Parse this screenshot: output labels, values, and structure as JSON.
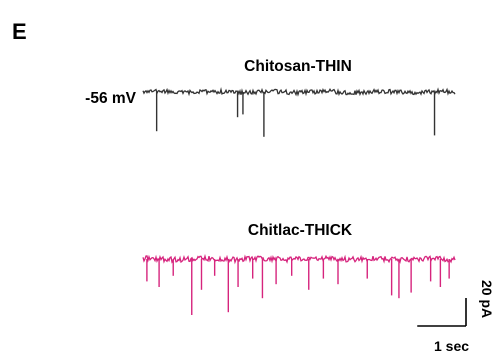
{
  "panel_label": "E",
  "traces": [
    {
      "title": "Chitosan-THIN",
      "holding_potential": "-56 mV",
      "color": "#333333"
    },
    {
      "title": "Chitlac-THICK",
      "color": "#d6247d"
    }
  ],
  "scale_bar": {
    "current_label": "20 pA",
    "time_label": "1 sec",
    "current_value_pA": 20,
    "time_value_s": 1
  },
  "chart_data": [
    {
      "type": "line",
      "title": "Chitosan-THIN",
      "annotation": "-56 mV",
      "units": {
        "x": "sec",
        "y": "pA"
      },
      "x_range_sec": [
        0,
        6.4
      ],
      "baseline_pA": 0,
      "events": [
        {
          "t": 0.28,
          "amplitude_pA": -28
        },
        {
          "t": 1.94,
          "amplitude_pA": -18
        },
        {
          "t": 2.05,
          "amplitude_pA": -16
        },
        {
          "t": 2.48,
          "amplitude_pA": -32
        },
        {
          "t": 5.98,
          "amplitude_pA": -31
        }
      ]
    },
    {
      "type": "line",
      "title": "Chitlac-THICK",
      "units": {
        "x": "sec",
        "y": "pA"
      },
      "x_range_sec": [
        0,
        6.4
      ],
      "baseline_pA": 0,
      "events": [
        {
          "t": 0.08,
          "amplitude_pA": -16
        },
        {
          "t": 0.33,
          "amplitude_pA": -20
        },
        {
          "t": 0.62,
          "amplitude_pA": -12
        },
        {
          "t": 1.0,
          "amplitude_pA": -40
        },
        {
          "t": 1.2,
          "amplitude_pA": -22
        },
        {
          "t": 1.47,
          "amplitude_pA": -12
        },
        {
          "t": 1.75,
          "amplitude_pA": -38
        },
        {
          "t": 1.95,
          "amplitude_pA": -20
        },
        {
          "t": 2.25,
          "amplitude_pA": -14
        },
        {
          "t": 2.45,
          "amplitude_pA": -28
        },
        {
          "t": 2.73,
          "amplitude_pA": -18
        },
        {
          "t": 3.05,
          "amplitude_pA": -12
        },
        {
          "t": 3.4,
          "amplitude_pA": -22
        },
        {
          "t": 3.7,
          "amplitude_pA": -14
        },
        {
          "t": 4.0,
          "amplitude_pA": -18
        },
        {
          "t": 4.6,
          "amplitude_pA": -14
        },
        {
          "t": 5.1,
          "amplitude_pA": -26
        },
        {
          "t": 5.25,
          "amplitude_pA": -28
        },
        {
          "t": 5.5,
          "amplitude_pA": -24
        },
        {
          "t": 5.9,
          "amplitude_pA": -16
        },
        {
          "t": 6.1,
          "amplitude_pA": -20
        },
        {
          "t": 6.28,
          "amplitude_pA": -14
        }
      ]
    }
  ]
}
